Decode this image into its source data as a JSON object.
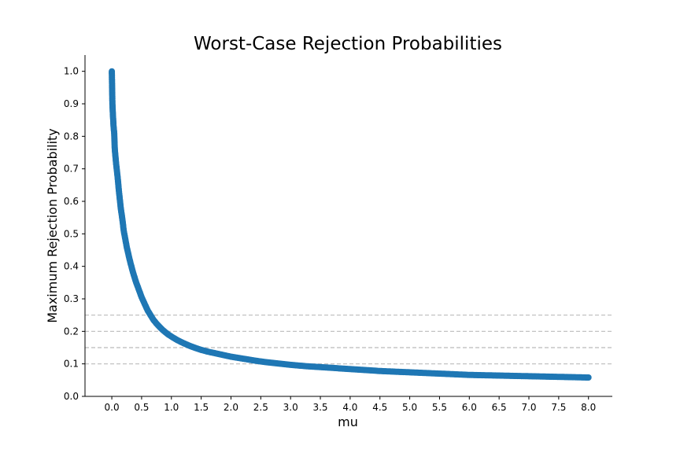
{
  "chart_data": {
    "type": "line",
    "title": "Worst-Case Rejection Probabilities",
    "xlabel": "mu",
    "ylabel": "Maximum Rejection Probability",
    "xlim": [
      -0.45,
      8.4
    ],
    "ylim": [
      0.0,
      1.05
    ],
    "xticks": [
      0.0,
      0.5,
      1.0,
      1.5,
      2.0,
      2.5,
      3.0,
      3.5,
      4.0,
      4.5,
      5.0,
      5.5,
      6.0,
      6.5,
      7.0,
      7.5,
      8.0
    ],
    "xtick_labels": [
      "0.0",
      "0.5",
      "1.0",
      "1.5",
      "2.0",
      "2.5",
      "3.0",
      "3.5",
      "4.0",
      "4.5",
      "5.0",
      "5.5",
      "6.0",
      "6.5",
      "7.0",
      "7.5",
      "8.0"
    ],
    "yticks": [
      0.0,
      0.1,
      0.2,
      0.3,
      0.4,
      0.5,
      0.6,
      0.7,
      0.8,
      0.9,
      1.0
    ],
    "ytick_labels": [
      "0.0",
      "0.1",
      "0.2",
      "0.3",
      "0.4",
      "0.5",
      "0.6",
      "0.7",
      "0.8",
      "0.9",
      "1.0"
    ],
    "reference_lines": [
      0.1,
      0.15,
      0.2,
      0.25
    ],
    "grid": false,
    "marker": "circle",
    "series": [
      {
        "color": "#1f77b4",
        "x": [
          0.0,
          0.01,
          0.02,
          0.03,
          0.04,
          0.05,
          0.07,
          0.1,
          0.12,
          0.15,
          0.18,
          0.2,
          0.25,
          0.3,
          0.35,
          0.4,
          0.45,
          0.5,
          0.55,
          0.6,
          0.65,
          0.7,
          0.75,
          0.8,
          0.85,
          0.9,
          0.95,
          1.0,
          1.1,
          1.2,
          1.3,
          1.4,
          1.5,
          1.6,
          1.7,
          1.8,
          1.9,
          2.0,
          2.2,
          2.4,
          2.6,
          2.8,
          3.0,
          3.25,
          3.5,
          3.75,
          4.0,
          4.25,
          4.5,
          4.75,
          5.0,
          5.25,
          5.5,
          5.75,
          6.0,
          6.25,
          6.5,
          6.75,
          7.0,
          7.25,
          7.5,
          7.75,
          8.0
        ],
        "y": [
          1.0,
          0.9,
          0.86,
          0.83,
          0.81,
          0.76,
          0.72,
          0.67,
          0.63,
          0.58,
          0.54,
          0.51,
          0.46,
          0.42,
          0.385,
          0.355,
          0.33,
          0.305,
          0.285,
          0.265,
          0.25,
          0.235,
          0.224,
          0.214,
          0.205,
          0.197,
          0.19,
          0.184,
          0.173,
          0.164,
          0.156,
          0.149,
          0.143,
          0.138,
          0.134,
          0.13,
          0.126,
          0.122,
          0.116,
          0.11,
          0.105,
          0.101,
          0.097,
          0.093,
          0.09,
          0.087,
          0.084,
          0.081,
          0.078,
          0.076,
          0.074,
          0.072,
          0.07,
          0.068,
          0.066,
          0.065,
          0.064,
          0.063,
          0.062,
          0.061,
          0.06,
          0.059,
          0.058
        ]
      }
    ]
  }
}
